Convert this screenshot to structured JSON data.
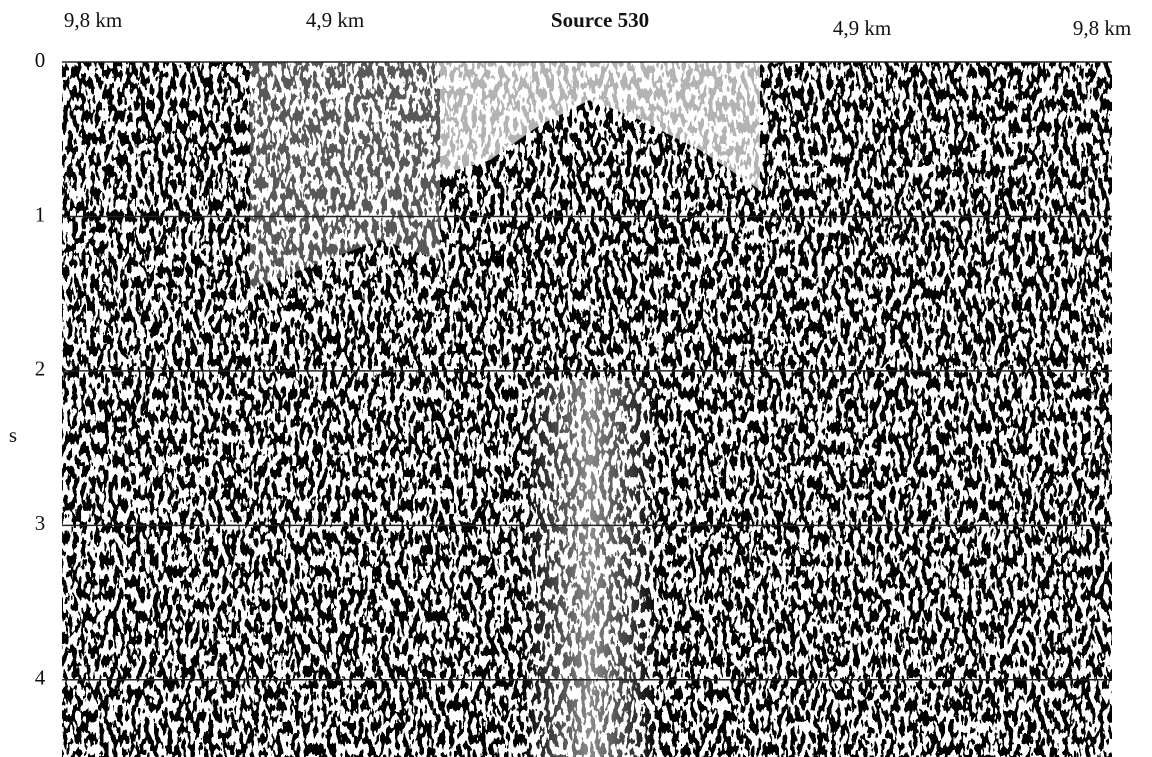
{
  "chart_data": {
    "type": "seismic",
    "title": "Source 530",
    "offset_labels": [
      "9,8 km",
      "4,9 km",
      "4,9 km",
      "9,8 km"
    ],
    "ylabel": "s",
    "ylim": [
      0,
      4.5
    ],
    "yticks": [
      0,
      1,
      2,
      3,
      4
    ],
    "grid": true
  }
}
